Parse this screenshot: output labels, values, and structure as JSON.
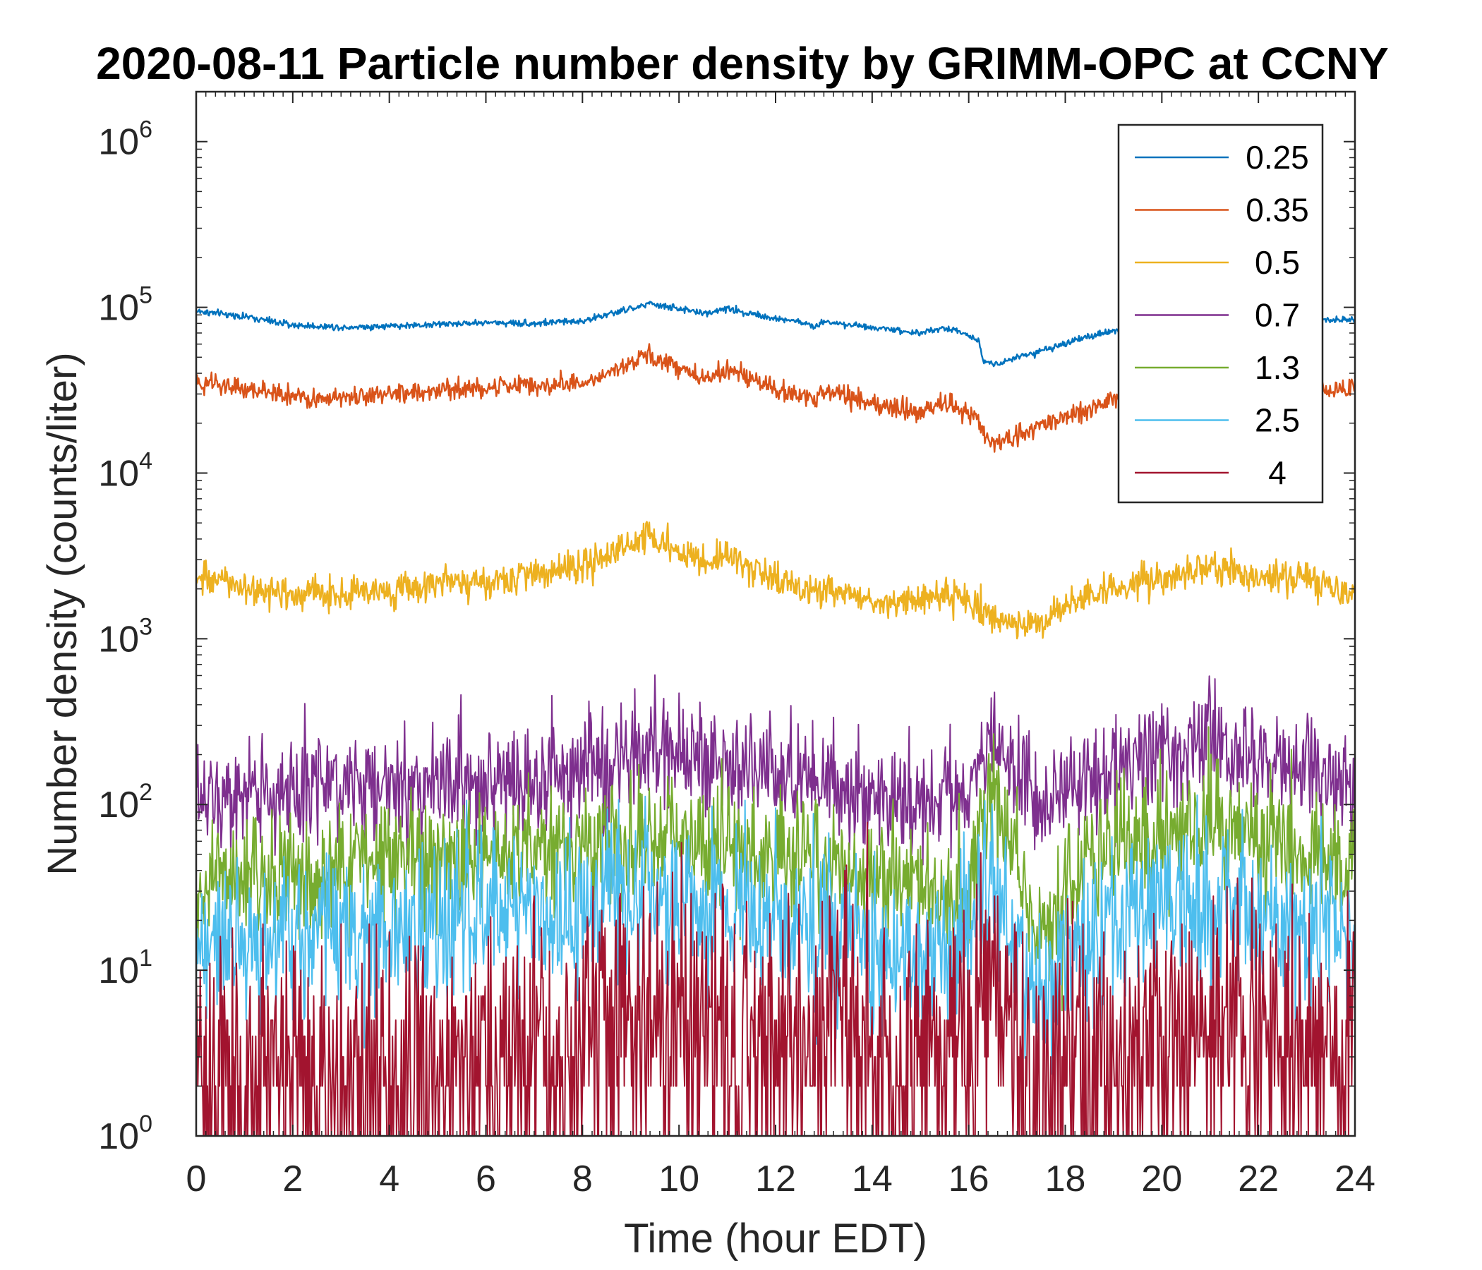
{
  "chart_data": {
    "type": "line",
    "title": "2020-08-11 Particle number density by GRIMM-OPC at CCNY",
    "xlabel": "Time (hour EDT)",
    "ylabel": "Number density (counts/liter)",
    "xscale": "linear",
    "yscale": "log",
    "xlim": [
      0,
      24
    ],
    "ylim": [
      1,
      2000000
    ],
    "xticks": [
      0,
      2,
      4,
      6,
      8,
      10,
      12,
      14,
      16,
      18,
      20,
      22,
      24
    ],
    "yticks": [
      {
        "base": "10",
        "exp": "0",
        "value": 1
      },
      {
        "base": "10",
        "exp": "1",
        "value": 10
      },
      {
        "base": "10",
        "exp": "2",
        "value": 100
      },
      {
        "base": "10",
        "exp": "3",
        "value": 1000
      },
      {
        "base": "10",
        "exp": "4",
        "value": 10000
      },
      {
        "base": "10",
        "exp": "5",
        "value": 100000
      },
      {
        "base": "10",
        "exp": "6",
        "value": 1000000
      }
    ],
    "legend_position": "top-right",
    "series": [
      {
        "name": "0.25",
        "color": "#0072BD",
        "noise": 0.01,
        "x": [
          0,
          1,
          2,
          3,
          4,
          5,
          6,
          7,
          8,
          8.5,
          9,
          9.4,
          10,
          10.5,
          11,
          11.5,
          12,
          12.5,
          12.8,
          13,
          14,
          15,
          15.5,
          16,
          16.2,
          16.3,
          16.6,
          17,
          18,
          19,
          20,
          21,
          22,
          23,
          24
        ],
        "values": [
          95000,
          88000,
          78000,
          76000,
          77000,
          79000,
          81000,
          80000,
          83000,
          90000,
          98000,
          105000,
          98000,
          92000,
          98000,
          92000,
          85000,
          82000,
          76000,
          82000,
          76000,
          70000,
          75000,
          68000,
          64000,
          47000,
          46000,
          50000,
          60000,
          73000,
          80000,
          85000,
          82000,
          83000,
          84000
        ]
      },
      {
        "name": "0.35",
        "color": "#D95319",
        "noise": 0.03,
        "x": [
          0,
          1,
          2,
          3,
          4,
          5,
          6,
          7,
          8,
          8.5,
          9,
          9.4,
          10,
          10.5,
          11,
          11.5,
          12,
          12.5,
          12.8,
          13,
          14,
          15,
          15.5,
          16,
          16.2,
          16.3,
          16.6,
          17,
          18,
          19,
          20,
          21,
          22,
          23,
          24
        ],
        "values": [
          35000,
          32000,
          29000,
          28000,
          30000,
          31500,
          33000,
          33500,
          35000,
          40000,
          46000,
          52000,
          43000,
          38000,
          42000,
          37000,
          32000,
          30000,
          27000,
          32000,
          26000,
          23000,
          27000,
          23000,
          21500,
          16000,
          15500,
          17000,
          22000,
          28000,
          33000,
          35000,
          33000,
          33000,
          32000
        ]
      },
      {
        "name": "0.5",
        "color": "#EDB120",
        "noise": 0.05,
        "x": [
          0,
          0.5,
          1,
          2,
          3,
          4,
          5,
          6,
          7,
          8,
          8.5,
          9,
          9.4,
          10,
          10.5,
          11,
          11.5,
          12,
          12.5,
          12.8,
          13,
          14,
          14.5,
          15,
          15.5,
          16,
          16.5,
          17,
          17.5,
          18,
          19,
          20,
          21,
          22,
          23,
          24
        ],
        "values": [
          2300,
          2200,
          2050,
          1850,
          1850,
          1950,
          2100,
          2250,
          2400,
          2700,
          3200,
          3700,
          4300,
          3300,
          2700,
          3300,
          2600,
          2250,
          1850,
          2000,
          2000,
          1650,
          1650,
          1750,
          1950,
          1600,
          1400,
          1200,
          1300,
          1600,
          2000,
          2350,
          2700,
          2400,
          2300,
          1850
        ]
      },
      {
        "name": "0.7",
        "color": "#7E2F8E",
        "noise": 0.17,
        "x": [
          0,
          1,
          2,
          3,
          4,
          5,
          6,
          7,
          8,
          9,
          9.4,
          10,
          11,
          12,
          13,
          14,
          15,
          16,
          16.3,
          16.5,
          17,
          17.5,
          18,
          19,
          20,
          21,
          21.5,
          22,
          23,
          24
        ],
        "values": [
          115,
          120,
          122,
          125,
          130,
          135,
          140,
          145,
          160,
          190,
          220,
          185,
          170,
          150,
          135,
          115,
          105,
          105,
          200,
          230,
          150,
          85,
          120,
          170,
          210,
          245,
          215,
          180,
          165,
          130
        ]
      },
      {
        "name": "1.3",
        "color": "#77AC30",
        "noise": 0.2,
        "x": [
          0,
          1,
          2,
          3,
          4,
          5,
          6,
          7,
          8,
          9,
          9.4,
          10,
          11,
          12,
          13,
          14,
          15,
          16,
          16.3,
          16.5,
          17,
          17.5,
          18,
          19,
          20,
          21,
          21.5,
          22,
          23,
          24
        ],
        "values": [
          35,
          38,
          40,
          43,
          45,
          46,
          48,
          50,
          55,
          62,
          68,
          62,
          56,
          50,
          42,
          35,
          31,
          30,
          90,
          110,
          45,
          15,
          35,
          55,
          68,
          80,
          72,
          58,
          52,
          42
        ]
      },
      {
        "name": "2.5",
        "color": "#4DBEEE",
        "noise": 0.25,
        "x": [
          0,
          1,
          2,
          3,
          4,
          5,
          6,
          7,
          8,
          9,
          9.4,
          10,
          11,
          12,
          13,
          14,
          15,
          16,
          16.3,
          16.5,
          17,
          17.5,
          18,
          19,
          20,
          21,
          21.5,
          22,
          23,
          24
        ],
        "values": [
          15,
          16,
          17,
          17,
          18,
          19,
          20,
          21,
          23,
          26,
          28,
          24,
          22,
          20,
          18,
          15,
          14,
          14,
          30,
          35,
          15,
          6,
          12,
          20,
          24,
          26,
          24,
          20,
          18,
          17
        ]
      },
      {
        "name": "4",
        "color": "#A2142F",
        "noise": 0.45,
        "x": [
          0,
          1,
          2,
          3,
          4,
          5,
          6,
          7,
          8,
          9,
          9.4,
          10,
          11,
          12,
          13,
          14,
          15,
          16,
          16.3,
          16.5,
          17,
          17.5,
          18,
          19,
          20,
          21,
          21.5,
          22,
          23,
          24
        ],
        "values": [
          2.2,
          2.2,
          2.5,
          2.5,
          2.2,
          2.2,
          2.6,
          3,
          3.2,
          4.5,
          5.5,
          4.5,
          4,
          3.5,
          3.5,
          3,
          3,
          3.5,
          9,
          10,
          4,
          1.3,
          2.5,
          3,
          3.5,
          4.2,
          4,
          3.5,
          3,
          2.5
        ]
      }
    ]
  }
}
